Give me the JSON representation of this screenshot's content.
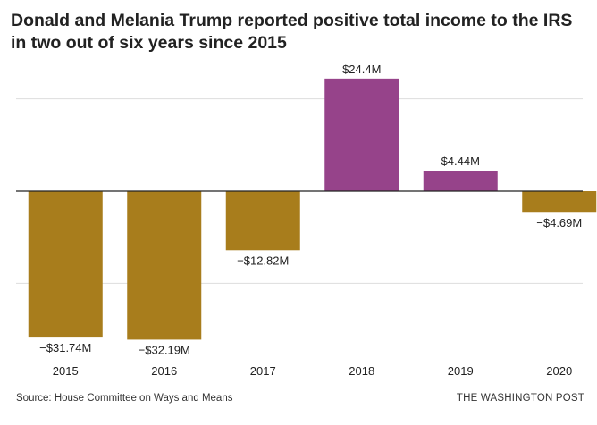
{
  "title": "Donald and Melania Trump reported positive total income to the IRS in two out of six years since 2015",
  "source": "Source: House Committee on Ways and Means",
  "credit": "THE WASHINGTON POST",
  "colors": {
    "negative": "#a87d1c",
    "positive": "#96438a",
    "grid": "#dddddd",
    "zero_line": "#222222"
  },
  "chart_data": {
    "type": "bar",
    "title": "Donald and Melania Trump reported positive total income to the IRS in two out of six years since 2015",
    "categories": [
      "2015",
      "2016",
      "2017",
      "2018",
      "2019",
      "2020"
    ],
    "values": [
      -31.74,
      -32.19,
      -12.82,
      24.4,
      4.44,
      -4.69
    ],
    "value_labels": [
      "−$31.74M",
      "−$32.19M",
      "−$12.82M",
      "$24.4M",
      "$4.44M",
      "−$4.69M"
    ],
    "unit": "millions of dollars",
    "xlabel": "",
    "ylabel": "",
    "ylim": [
      -40,
      40
    ],
    "gridlines": [
      -20,
      20
    ],
    "grid": true
  }
}
